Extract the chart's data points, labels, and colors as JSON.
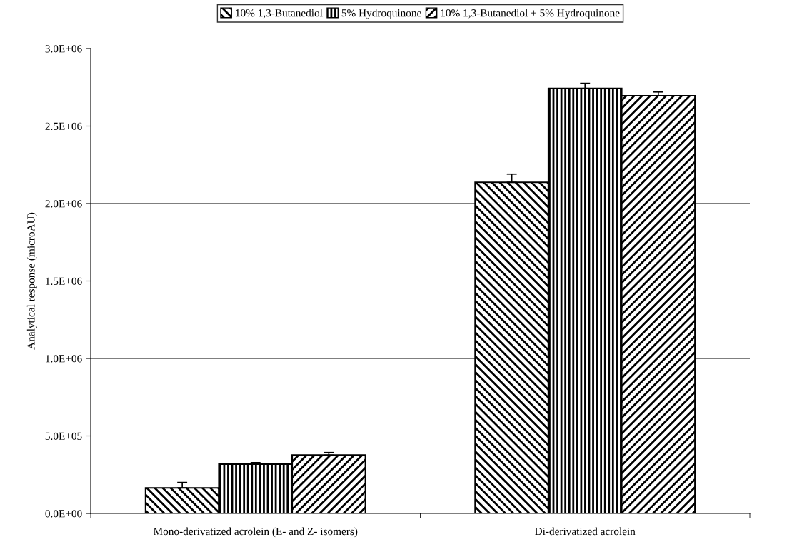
{
  "chart_data": {
    "type": "bar",
    "ylabel": "Analytical response (microAU)",
    "categories": [
      "Mono-derivatized acrolein (E- and Z- isomers)",
      "Di-derivatized acrolein"
    ],
    "series": [
      {
        "name": "10% 1,3-Butanediol",
        "color": "#000000",
        "values": [
          165000,
          2137000
        ],
        "errors": [
          [
            165000,
            200000
          ],
          [
            2137000,
            2190000
          ]
        ]
      },
      {
        "name": "5% Hydroquinone",
        "color": "#000000",
        "values": [
          318000,
          2743000
        ],
        "errors": [
          [
            318000,
            328000
          ],
          [
            2743000,
            2776000
          ]
        ]
      },
      {
        "name": "10% 1,3-Butanediol + 5% Hydroquinone",
        "color": "#000000",
        "values": [
          376000,
          2696000
        ],
        "errors": [
          [
            376000,
            393000
          ],
          [
            2696000,
            2720000
          ]
        ]
      }
    ],
    "ylim": [
      0,
      3000000
    ],
    "yticks": [
      {
        "value": 0,
        "label": "0.0E+00"
      },
      {
        "value": 500000,
        "label": "5.0E+05"
      },
      {
        "value": 1000000,
        "label": "1.0E+06"
      },
      {
        "value": 1500000,
        "label": "1.5E+06"
      },
      {
        "value": 2000000,
        "label": "2.0E+06"
      },
      {
        "value": 2500000,
        "label": "2.5E+06"
      },
      {
        "value": 3000000,
        "label": "3.0E+06"
      }
    ],
    "grid": "y",
    "legend": "top"
  }
}
